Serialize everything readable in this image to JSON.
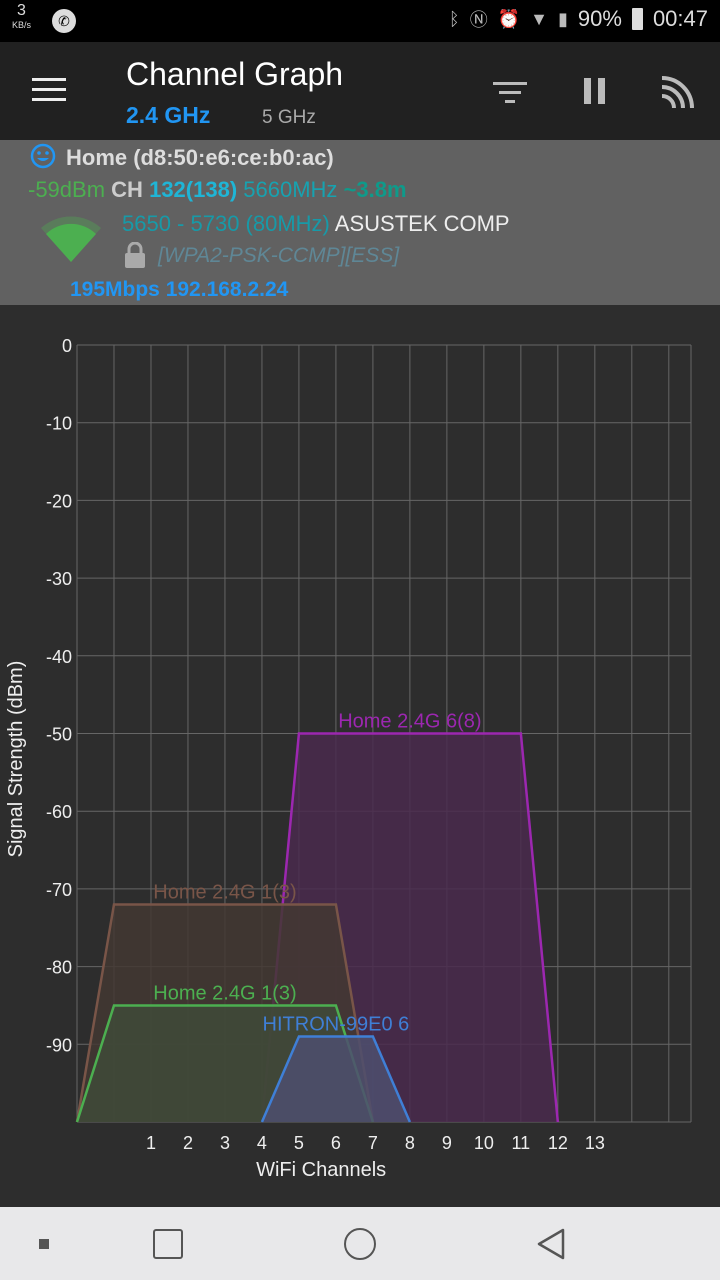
{
  "status_bar": {
    "speed": "3",
    "speed_unit": "KB/s",
    "battery": "90%",
    "time": "00:47",
    "icons": [
      "phone-icon",
      "bluetooth-icon",
      "nfc-icon",
      "alarm-icon",
      "wifi-icon",
      "signal-3g-icon",
      "battery-icon"
    ]
  },
  "app_bar": {
    "title": "Channel Graph",
    "tabs": [
      {
        "label": "2.4 GHz",
        "active": true
      },
      {
        "label": "5 GHz",
        "active": false
      }
    ],
    "icons": [
      "menu-icon",
      "filter-icon",
      "pause-icon",
      "wifi-scan-icon"
    ]
  },
  "connection": {
    "ssid": "Home (d8:50:e6:ce:b0:ac)",
    "signal": "-59dBm",
    "ch_label": "CH",
    "channel": "132(138)",
    "frequency": "5660MHz",
    "distance": "~3.8m",
    "range": "5650 - 5730 (80MHz)",
    "vendor": "ASUSTEK COMP",
    "security": "[WPA2-PSK-CCMP][ESS]",
    "speed_ip": "195Mbps 192.168.2.24"
  },
  "chart_data": {
    "type": "area",
    "xlabel": "WiFi Channels",
    "ylabel": "Signal Strength (dBm)",
    "xlim": [
      -1,
      15.6
    ],
    "ylim": [
      -100,
      0
    ],
    "x_ticks": [
      1,
      2,
      3,
      4,
      5,
      6,
      7,
      8,
      9,
      10,
      11,
      12,
      13
    ],
    "y_ticks": [
      0,
      -10,
      -20,
      -30,
      -40,
      -50,
      -60,
      -70,
      -80,
      -90
    ],
    "grid": true,
    "series": [
      {
        "name": "Home 2.4G 6(8)",
        "color": "#9c27b0",
        "fill": "#4a2a4e",
        "points": [
          [
            4,
            -100
          ],
          [
            5,
            -50
          ],
          [
            11,
            -50
          ],
          [
            12,
            -100
          ]
        ]
      },
      {
        "name": "Home 2.4G 1(3)",
        "color": "#795548",
        "fill": "#433833",
        "points": [
          [
            -1,
            -100
          ],
          [
            0,
            -72
          ],
          [
            6,
            -72
          ],
          [
            7,
            -100
          ]
        ]
      },
      {
        "name": "Home 2.4G 1(3)",
        "color": "#4caf50",
        "fill": "#3f4a38",
        "points": [
          [
            -1,
            -100
          ],
          [
            0,
            -85
          ],
          [
            6,
            -85
          ],
          [
            7,
            -100
          ]
        ]
      },
      {
        "name": "HITRON-99E0 6",
        "color": "#3f7fd6",
        "fill": "#4e4f6e",
        "points": [
          [
            4,
            -100
          ],
          [
            5,
            -89
          ],
          [
            7,
            -89
          ],
          [
            8,
            -100
          ]
        ]
      }
    ]
  }
}
